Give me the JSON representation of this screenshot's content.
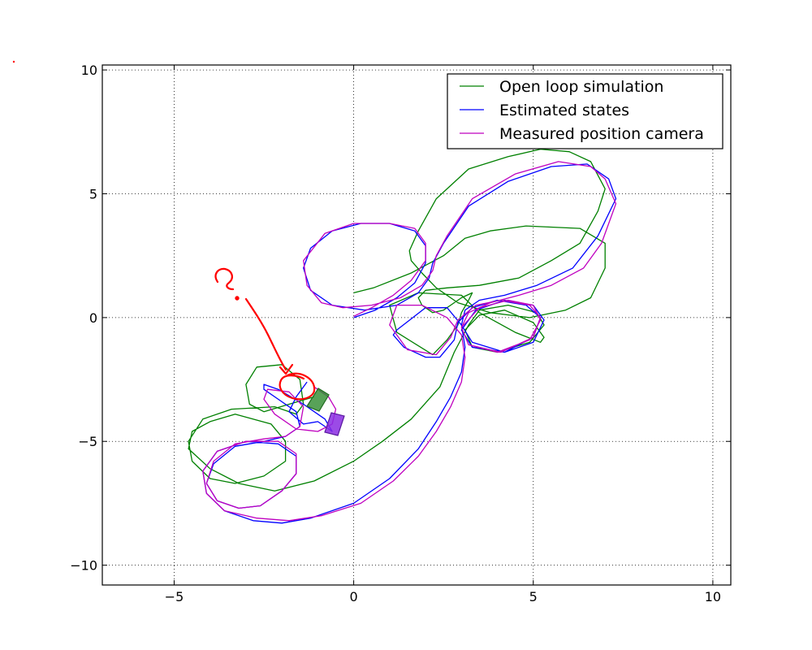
{
  "chart_data": {
    "type": "line",
    "title": "",
    "xlabel": "",
    "ylabel": "",
    "xlim": [
      -7,
      10.5
    ],
    "ylim": [
      -10.8,
      10.2
    ],
    "grid": true,
    "legend_position": "top-right",
    "x_ticks": [
      -5,
      0,
      5,
      10
    ],
    "x_tick_labels": [
      "−5",
      "0",
      "5",
      "10"
    ],
    "y_ticks": [
      10,
      5,
      0,
      -5,
      -10
    ],
    "y_tick_labels": [
      "10",
      "5",
      "0",
      "−5",
      "−10"
    ],
    "colors": {
      "open_loop": "#008000",
      "estimated": "#0000ff",
      "measured": "#bf00bf",
      "annotation": "#ff0000",
      "camera_box_green": "#2e8b2e",
      "camera_box_purple": "#8a2be2"
    },
    "series": [
      {
        "name": "Open loop simulation",
        "color": "#008000",
        "x": [
          0,
          0.55,
          1.6,
          2.5,
          3.1,
          3.8,
          4.8,
          6.3,
          7.0,
          7.0,
          6.6,
          5.9,
          4.9,
          3.8,
          2.9,
          2.3,
          1.9,
          1.6,
          1.55,
          1.8,
          2.3,
          3.2,
          4.3,
          5.2,
          6.0,
          6.6,
          7.0,
          6.8,
          6.3,
          5.5,
          4.6,
          3.5,
          2.6,
          2.0,
          1.8,
          1.9,
          2.2,
          2.5,
          2.7,
          3.0,
          3.3,
          3.2,
          3.0,
          2.9,
          2.6,
          2.2,
          1.2,
          1.0,
          1.8,
          3.0,
          3.5,
          4.5,
          5.2,
          5.3,
          5.0,
          4.2,
          3.5,
          3.1,
          3.3,
          4.0,
          4.9,
          5.3,
          5.1,
          4.3,
          3.5,
          3.2,
          2.8,
          2.4,
          1.6,
          0.8,
          0,
          -1.1,
          -2.2,
          -3.2,
          -4.0,
          -4.6,
          -4.5,
          -4.0,
          -3.3,
          -2.3,
          -1.9,
          -1.9,
          -2.5,
          -3.3,
          -4.0,
          -4.5,
          -4.6,
          -4.2,
          -3.4,
          -2.2,
          -1.6,
          -1.4,
          -1.5,
          -2.0,
          -2.7,
          -3.0,
          -2.9,
          -2.5,
          -1.8,
          -1.1
        ],
        "y": [
          1.0,
          1.2,
          1.8,
          2.5,
          3.2,
          3.5,
          3.7,
          3.6,
          3.0,
          2.0,
          0.8,
          0.3,
          0.0,
          0.2,
          0.6,
          1.2,
          1.8,
          2.3,
          2.7,
          3.5,
          4.8,
          6.0,
          6.5,
          6.8,
          6.7,
          6.3,
          5.2,
          4.3,
          3.0,
          2.3,
          1.6,
          1.3,
          1.2,
          1.1,
          0.8,
          0.5,
          0.2,
          0.3,
          0.5,
          0.8,
          1.0,
          0.7,
          0.2,
          -0.3,
          -0.9,
          -1.5,
          -0.6,
          0.5,
          1.0,
          0.9,
          0.2,
          -0.6,
          -1.0,
          -0.8,
          -0.2,
          0.3,
          0.1,
          -0.5,
          -1.2,
          -1.4,
          -1.0,
          -0.3,
          0.2,
          0.5,
          0.3,
          -0.3,
          -1.4,
          -2.8,
          -4.1,
          -5.0,
          -5.8,
          -6.6,
          -7.0,
          -6.7,
          -6.1,
          -5.3,
          -4.6,
          -4.2,
          -3.9,
          -4.3,
          -5.0,
          -5.8,
          -6.4,
          -6.7,
          -6.5,
          -5.8,
          -5.0,
          -4.1,
          -3.7,
          -3.6,
          -3.9,
          -3.5,
          -2.5,
          -1.9,
          -2.0,
          -2.7,
          -3.5,
          -3.8,
          -3.5,
          -3.2
        ]
      },
      {
        "name": "Estimated states",
        "color": "#0000ff",
        "x": [
          0,
          0.6,
          1.2,
          1.7,
          2.0,
          2.0,
          1.7,
          1.0,
          0.2,
          -0.6,
          -1.2,
          -1.4,
          -1.2,
          -0.6,
          0.3,
          1.2,
          1.8,
          2.1,
          2.2,
          2.5,
          3.2,
          4.3,
          5.5,
          6.5,
          7.1,
          7.3,
          6.8,
          6.1,
          5.1,
          4.2,
          3.5,
          3.1,
          3.0,
          3.3,
          4.2,
          5.0,
          5.3,
          5.0,
          4.2,
          3.4,
          3.0,
          3.3,
          4.2,
          5.0,
          5.2,
          4.8,
          4.0,
          3.3,
          2.9,
          2.8,
          2.4,
          2.0,
          1.4,
          1.1,
          1.2,
          2.0,
          2.6,
          3.0,
          3.1,
          3.0,
          2.7,
          2.3,
          1.8,
          1.0,
          0,
          -1.2,
          -2.0,
          -2.8,
          -3.6,
          -4.1,
          -4.2,
          -3.8,
          -3.0,
          -2.1,
          -1.6,
          -1.6,
          -2.0,
          -2.6,
          -3.2,
          -3.8,
          -4.1,
          -3.9,
          -3.3,
          -2.5,
          -1.9,
          -1.5,
          -1.6,
          -2.1,
          -2.5,
          -2.5,
          -2.1,
          -1.4,
          -0.8,
          -0.6,
          -0.6,
          -1.0,
          -1.4,
          -1.8,
          -1.6,
          -1.3
        ],
        "y": [
          0,
          0.3,
          0.8,
          1.4,
          2.2,
          2.9,
          3.5,
          3.8,
          3.8,
          3.5,
          2.8,
          2.0,
          1.1,
          0.5,
          0.3,
          0.5,
          1.0,
          1.6,
          2.2,
          3.0,
          4.5,
          5.5,
          6.1,
          6.2,
          5.6,
          4.8,
          3.3,
          2.0,
          1.3,
          0.9,
          0.7,
          0.3,
          -0.3,
          -1.0,
          -1.4,
          -1.0,
          -0.1,
          0.5,
          0.7,
          0.3,
          -0.5,
          -1.2,
          -1.4,
          -0.8,
          0.0,
          0.5,
          0.7,
          0.4,
          -0.2,
          -0.9,
          -1.6,
          -1.6,
          -1.2,
          -0.7,
          -0.5,
          0.4,
          0.4,
          -0.3,
          -1.2,
          -2.2,
          -3.2,
          -4.2,
          -5.3,
          -6.5,
          -7.5,
          -8.1,
          -8.3,
          -8.2,
          -7.8,
          -7.1,
          -6.2,
          -5.4,
          -5.0,
          -5.1,
          -5.6,
          -6.3,
          -7.0,
          -7.6,
          -7.7,
          -7.4,
          -6.7,
          -5.9,
          -5.2,
          -5.0,
          -4.8,
          -4.4,
          -3.8,
          -3.3,
          -2.9,
          -2.7,
          -2.9,
          -3.5,
          -4.1,
          -4.6,
          -4.6,
          -4.2,
          -4.3,
          -3.8,
          -3.2,
          -2.6
        ]
      },
      {
        "name": "Measured position camera",
        "color": "#bf00bf",
        "x": [
          0,
          0.5,
          1.1,
          1.6,
          2.0,
          2.0,
          1.7,
          1.0,
          0.0,
          -0.8,
          -1.4,
          -1.3,
          -0.9,
          -0.3,
          0.5,
          1.3,
          1.9,
          2.2,
          2.3,
          2.6,
          3.3,
          4.5,
          5.7,
          6.6,
          7.0,
          7.3,
          6.9,
          6.4,
          5.5,
          4.6,
          3.8,
          3.2,
          3.0,
          3.2,
          4.0,
          4.9,
          5.2,
          5.0,
          4.3,
          3.5,
          3.0,
          3.2,
          4.1,
          5.0,
          5.2,
          4.9,
          4.1,
          3.4,
          2.9,
          2.7,
          2.3,
          1.5,
          1.0,
          1.2,
          1.9,
          2.6,
          3.0,
          3.1,
          3.0,
          2.7,
          2.3,
          1.8,
          1.1,
          0.2,
          -0.9,
          -1.8,
          -2.7,
          -3.6,
          -4.1,
          -4.2,
          -3.8,
          -3.0,
          -2.1,
          -1.6,
          -1.6,
          -2.0,
          -2.6,
          -3.2,
          -3.8,
          -4.1,
          -3.9,
          -3.3,
          -2.5,
          -1.9,
          -1.5,
          -1.4,
          -1.8,
          -2.4,
          -2.5,
          -2.2,
          -1.6,
          -1.0,
          -0.6,
          -0.5,
          -0.7,
          -1.1
        ],
        "y": [
          0.05,
          0.4,
          0.9,
          1.5,
          2.3,
          3.0,
          3.6,
          3.8,
          3.8,
          3.4,
          2.3,
          1.3,
          0.6,
          0.4,
          0.5,
          0.8,
          1.3,
          1.9,
          2.5,
          3.3,
          4.8,
          5.8,
          6.3,
          6.1,
          5.6,
          4.6,
          3.0,
          2.0,
          1.3,
          0.9,
          0.6,
          0.2,
          -0.4,
          -1.1,
          -1.4,
          -0.9,
          -0.1,
          0.5,
          0.7,
          0.4,
          -0.4,
          -1.1,
          -1.4,
          -0.8,
          0.0,
          0.5,
          0.7,
          0.5,
          -0.1,
          -0.8,
          -1.5,
          -1.3,
          -0.3,
          0.5,
          0.5,
          0.0,
          -0.7,
          -1.6,
          -2.6,
          -3.6,
          -4.6,
          -5.6,
          -6.6,
          -7.5,
          -8.0,
          -8.2,
          -8.1,
          -7.8,
          -7.1,
          -6.2,
          -5.4,
          -5.0,
          -5.0,
          -5.5,
          -6.3,
          -7.0,
          -7.6,
          -7.7,
          -7.4,
          -6.7,
          -5.8,
          -5.1,
          -4.9,
          -4.8,
          -4.4,
          -3.6,
          -3.0,
          -2.9,
          -3.3,
          -3.9,
          -4.5,
          -4.6,
          -4.3,
          -3.7,
          -3.2,
          -2.8
        ]
      }
    ]
  }
}
